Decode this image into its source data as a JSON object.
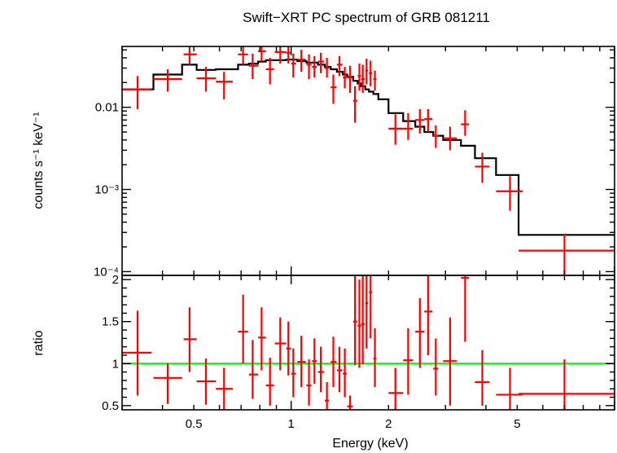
{
  "chart_data": [
    {
      "type": "scatter",
      "panel": "spectrum",
      "title": "Swift−XRT PC spectrum of GRB 081211",
      "xlabel": "",
      "ylabel": "counts s⁻¹ keV⁻¹",
      "xscale": "log",
      "yscale": "log",
      "xlim": [
        0.3,
        10
      ],
      "ylim": [
        9e-05,
        0.055
      ],
      "yticks": [
        {
          "value": 0.01,
          "label": "0.01"
        },
        {
          "value": 0.001,
          "label": "10⁻³"
        },
        {
          "value": 0.0001,
          "label": "10⁻⁴"
        }
      ],
      "colors": {
        "data": "#ff0000",
        "model": "#000000"
      },
      "series": [
        {
          "role": "data",
          "points": [
            {
              "x": 0.335,
              "xlo": 0.3,
              "xhi": 0.37,
              "y": 0.0165,
              "ylo": 0.0095,
              "yhi": 0.024
            },
            {
              "x": 0.415,
              "xlo": 0.375,
              "xhi": 0.46,
              "y": 0.022,
              "ylo": 0.0155,
              "yhi": 0.029
            },
            {
              "x": 0.485,
              "xlo": 0.465,
              "xhi": 0.51,
              "y": 0.044,
              "ylo": 0.033,
              "yhi": 0.056
            },
            {
              "x": 0.545,
              "xlo": 0.51,
              "xhi": 0.585,
              "y": 0.0225,
              "ylo": 0.0155,
              "yhi": 0.031
            },
            {
              "x": 0.62,
              "xlo": 0.585,
              "xhi": 0.66,
              "y": 0.0205,
              "ylo": 0.0125,
              "yhi": 0.027
            },
            {
              "x": 0.71,
              "xlo": 0.685,
              "xhi": 0.735,
              "y": 0.044,
              "ylo": 0.033,
              "yhi": 0.056
            },
            {
              "x": 0.76,
              "xlo": 0.74,
              "xhi": 0.79,
              "y": 0.032,
              "ylo": 0.022,
              "yhi": 0.045
            },
            {
              "x": 0.81,
              "xlo": 0.79,
              "xhi": 0.835,
              "y": 0.048,
              "ylo": 0.036,
              "yhi": 0.058
            },
            {
              "x": 0.86,
              "xlo": 0.835,
              "xhi": 0.885,
              "y": 0.029,
              "ylo": 0.019,
              "yhi": 0.04
            },
            {
              "x": 0.925,
              "xlo": 0.89,
              "xhi": 0.965,
              "y": 0.047,
              "ylo": 0.034,
              "yhi": 0.058
            },
            {
              "x": 0.98,
              "xlo": 0.965,
              "xhi": 1.0,
              "y": 0.046,
              "ylo": 0.034,
              "yhi": 0.058
            },
            {
              "x": 1.015,
              "xlo": 1.0,
              "xhi": 1.035,
              "y": 0.034,
              "ylo": 0.023,
              "yhi": 0.045
            },
            {
              "x": 1.075,
              "xlo": 1.045,
              "xhi": 1.11,
              "y": 0.038,
              "ylo": 0.027,
              "yhi": 0.05
            },
            {
              "x": 1.135,
              "xlo": 1.115,
              "xhi": 1.155,
              "y": 0.033,
              "ylo": 0.022,
              "yhi": 0.044
            },
            {
              "x": 1.18,
              "xlo": 1.16,
              "xhi": 1.2,
              "y": 0.031,
              "ylo": 0.023,
              "yhi": 0.042
            },
            {
              "x": 1.235,
              "xlo": 1.21,
              "xhi": 1.265,
              "y": 0.036,
              "ylo": 0.026,
              "yhi": 0.046
            },
            {
              "x": 1.29,
              "xlo": 1.27,
              "xhi": 1.31,
              "y": 0.03,
              "ylo": 0.023,
              "yhi": 0.04
            },
            {
              "x": 1.35,
              "xlo": 1.325,
              "xhi": 1.38,
              "y": 0.0175,
              "ylo": 0.011,
              "yhi": 0.025
            },
            {
              "x": 1.41,
              "xlo": 1.385,
              "xhi": 1.44,
              "y": 0.033,
              "ylo": 0.024,
              "yhi": 0.042
            },
            {
              "x": 1.465,
              "xlo": 1.445,
              "xhi": 1.485,
              "y": 0.023,
              "ylo": 0.017,
              "yhi": 0.031
            },
            {
              "x": 1.52,
              "xlo": 1.49,
              "xhi": 1.55,
              "y": 0.023,
              "ylo": 0.015,
              "yhi": 0.032
            },
            {
              "x": 1.575,
              "xlo": 1.555,
              "xhi": 1.6,
              "y": 0.012,
              "ylo": 0.0065,
              "yhi": 0.018
            },
            {
              "x": 1.625,
              "xlo": 1.605,
              "xhi": 1.645,
              "y": 0.024,
              "ylo": 0.016,
              "yhi": 0.034
            },
            {
              "x": 1.665,
              "xlo": 1.645,
              "xhi": 1.69,
              "y": 0.022,
              "ylo": 0.015,
              "yhi": 0.033
            },
            {
              "x": 1.71,
              "xlo": 1.695,
              "xhi": 1.73,
              "y": 0.028,
              "ylo": 0.019,
              "yhi": 0.039
            },
            {
              "x": 1.76,
              "xlo": 1.74,
              "xhi": 1.78,
              "y": 0.026,
              "ylo": 0.018,
              "yhi": 0.037
            },
            {
              "x": 1.815,
              "xlo": 1.795,
              "xhi": 1.835,
              "y": 0.022,
              "ylo": 0.016,
              "yhi": 0.028
            },
            {
              "x": 2.1,
              "xlo": 2.0,
              "xhi": 2.22,
              "y": 0.0055,
              "ylo": 0.0035,
              "yhi": 0.0082
            },
            {
              "x": 2.3,
              "xlo": 2.22,
              "xhi": 2.38,
              "y": 0.0055,
              "ylo": 0.004,
              "yhi": 0.0085
            },
            {
              "x": 2.5,
              "xlo": 2.42,
              "xhi": 2.58,
              "y": 0.007,
              "ylo": 0.0048,
              "yhi": 0.0095
            },
            {
              "x": 2.65,
              "xlo": 2.58,
              "xhi": 2.73,
              "y": 0.0072,
              "ylo": 0.005,
              "yhi": 0.0095
            },
            {
              "x": 2.8,
              "xlo": 2.75,
              "xhi": 2.85,
              "y": 0.0045,
              "ylo": 0.0032,
              "yhi": 0.006
            },
            {
              "x": 3.1,
              "xlo": 2.95,
              "xhi": 3.25,
              "y": 0.0042,
              "ylo": 0.003,
              "yhi": 0.0058
            },
            {
              "x": 3.45,
              "xlo": 3.35,
              "xhi": 3.55,
              "y": 0.0062,
              "ylo": 0.0045,
              "yhi": 0.0092
            },
            {
              "x": 3.9,
              "xlo": 3.7,
              "xhi": 4.1,
              "y": 0.0019,
              "ylo": 0.0012,
              "yhi": 0.0028
            },
            {
              "x": 4.75,
              "xlo": 4.3,
              "xhi": 5.2,
              "y": 0.00095,
              "ylo": 0.00055,
              "yhi": 0.00145
            },
            {
              "x": 7.0,
              "xlo": 5.05,
              "xhi": 10.0,
              "y": 0.00018,
              "ylo": 9e-05,
              "yhi": 0.00029
            }
          ]
        },
        {
          "role": "model",
          "steps": [
            {
              "x0": 0.3,
              "x1": 0.375,
              "y": 0.0165
            },
            {
              "x0": 0.375,
              "x1": 0.46,
              "y": 0.025
            },
            {
              "x0": 0.46,
              "x1": 0.51,
              "y": 0.033
            },
            {
              "x0": 0.51,
              "x1": 0.585,
              "y": 0.0285
            },
            {
              "x0": 0.585,
              "x1": 0.685,
              "y": 0.029
            },
            {
              "x0": 0.685,
              "x1": 0.74,
              "y": 0.033
            },
            {
              "x0": 0.74,
              "x1": 0.79,
              "y": 0.034
            },
            {
              "x0": 0.79,
              "x1": 0.835,
              "y": 0.036
            },
            {
              "x0": 0.835,
              "x1": 0.965,
              "y": 0.0375
            },
            {
              "x0": 0.965,
              "x1": 1.045,
              "y": 0.038
            },
            {
              "x0": 1.045,
              "x1": 1.115,
              "y": 0.0365
            },
            {
              "x0": 1.115,
              "x1": 1.21,
              "y": 0.035
            },
            {
              "x0": 1.21,
              "x1": 1.27,
              "y": 0.033
            },
            {
              "x0": 1.27,
              "x1": 1.325,
              "y": 0.031
            },
            {
              "x0": 1.325,
              "x1": 1.385,
              "y": 0.029
            },
            {
              "x0": 1.385,
              "x1": 1.445,
              "y": 0.027
            },
            {
              "x0": 1.445,
              "x1": 1.49,
              "y": 0.025
            },
            {
              "x0": 1.49,
              "x1": 1.555,
              "y": 0.0235
            },
            {
              "x0": 1.555,
              "x1": 1.605,
              "y": 0.021
            },
            {
              "x0": 1.605,
              "x1": 1.645,
              "y": 0.0195
            },
            {
              "x0": 1.645,
              "x1": 1.695,
              "y": 0.018
            },
            {
              "x0": 1.695,
              "x1": 1.74,
              "y": 0.0165
            },
            {
              "x0": 1.74,
              "x1": 1.795,
              "y": 0.0155
            },
            {
              "x0": 1.795,
              "x1": 1.86,
              "y": 0.0145
            },
            {
              "x0": 1.86,
              "x1": 2.0,
              "y": 0.0125
            },
            {
              "x0": 2.0,
              "x1": 2.22,
              "y": 0.0085
            },
            {
              "x0": 2.22,
              "x1": 2.42,
              "y": 0.0068
            },
            {
              "x0": 2.42,
              "x1": 2.58,
              "y": 0.0058
            },
            {
              "x0": 2.58,
              "x1": 2.75,
              "y": 0.005
            },
            {
              "x0": 2.75,
              "x1": 2.95,
              "y": 0.0045
            },
            {
              "x0": 2.95,
              "x1": 3.35,
              "y": 0.004
            },
            {
              "x0": 3.35,
              "x1": 3.7,
              "y": 0.0034
            },
            {
              "x0": 3.7,
              "x1": 4.3,
              "y": 0.0024
            },
            {
              "x0": 4.3,
              "x1": 5.05,
              "y": 0.0015
            },
            {
              "x0": 5.05,
              "x1": 10.0,
              "y": 0.00028
            }
          ]
        }
      ]
    },
    {
      "type": "scatter",
      "panel": "ratio",
      "title": "",
      "xlabel": "Energy (keV)",
      "ylabel": "ratio",
      "xscale": "log",
      "xlim": [
        0.3,
        10
      ],
      "ylim": [
        0.45,
        2.05
      ],
      "xticks": [
        {
          "value": 0.5,
          "label": "0.5"
        },
        {
          "value": 1,
          "label": "1"
        },
        {
          "value": 2,
          "label": "2"
        },
        {
          "value": 5,
          "label": "5"
        }
      ],
      "yticks": [
        {
          "value": 0.5,
          "label": "0.5"
        },
        {
          "value": 1,
          "label": "1"
        },
        {
          "value": 1.5,
          "label": "1.5"
        },
        {
          "value": 2,
          "label": "2"
        }
      ],
      "reference_line": {
        "y": 1,
        "color": "#00ff00"
      },
      "colors": {
        "data": "#ff0000"
      },
      "series": [
        {
          "role": "data",
          "points": [
            {
              "x": 0.335,
              "xlo": 0.3,
              "xhi": 0.37,
              "y": 1.13,
              "ylo": 0.62,
              "yhi": 1.63
            },
            {
              "x": 0.415,
              "xlo": 0.375,
              "xhi": 0.46,
              "y": 0.83,
              "ylo": 0.52,
              "yhi": 1.0
            },
            {
              "x": 0.485,
              "xlo": 0.465,
              "xhi": 0.51,
              "y": 1.29,
              "ylo": 0.9,
              "yhi": 1.67
            },
            {
              "x": 0.545,
              "xlo": 0.51,
              "xhi": 0.585,
              "y": 0.79,
              "ylo": 0.51,
              "yhi": 1.06
            },
            {
              "x": 0.62,
              "xlo": 0.585,
              "xhi": 0.66,
              "y": 0.7,
              "ylo": 0.45,
              "yhi": 0.95
            },
            {
              "x": 0.71,
              "xlo": 0.685,
              "xhi": 0.735,
              "y": 1.38,
              "ylo": 1.0,
              "yhi": 1.82
            },
            {
              "x": 0.76,
              "xlo": 0.74,
              "xhi": 0.79,
              "y": 0.87,
              "ylo": 0.58,
              "yhi": 1.28
            },
            {
              "x": 0.81,
              "xlo": 0.79,
              "xhi": 0.835,
              "y": 1.31,
              "ylo": 0.92,
              "yhi": 1.67
            },
            {
              "x": 0.86,
              "xlo": 0.835,
              "xhi": 0.885,
              "y": 0.74,
              "ylo": 0.5,
              "yhi": 1.07
            },
            {
              "x": 0.925,
              "xlo": 0.89,
              "xhi": 0.965,
              "y": 1.24,
              "ylo": 0.92,
              "yhi": 1.55
            },
            {
              "x": 0.98,
              "xlo": 0.965,
              "xhi": 1.0,
              "y": 1.18,
              "ylo": 0.86,
              "yhi": 1.5
            },
            {
              "x": 1.015,
              "xlo": 1.0,
              "xhi": 1.035,
              "y": 0.88,
              "ylo": 0.6,
              "yhi": 1.18
            },
            {
              "x": 1.075,
              "xlo": 1.045,
              "xhi": 1.11,
              "y": 1.02,
              "ylo": 0.72,
              "yhi": 1.33
            },
            {
              "x": 1.135,
              "xlo": 1.115,
              "xhi": 1.155,
              "y": 0.74,
              "ylo": 0.5,
              "yhi": 1.05
            },
            {
              "x": 1.18,
              "xlo": 1.16,
              "xhi": 1.2,
              "y": 1.03,
              "ylo": 0.76,
              "yhi": 1.3
            },
            {
              "x": 1.235,
              "xlo": 1.21,
              "xhi": 1.265,
              "y": 0.9,
              "ylo": 0.66,
              "yhi": 1.2
            },
            {
              "x": 1.29,
              "xlo": 1.27,
              "xhi": 1.31,
              "y": 0.56,
              "ylo": 0.45,
              "yhi": 0.78
            },
            {
              "x": 1.35,
              "xlo": 1.325,
              "xhi": 1.38,
              "y": 1.02,
              "ylo": 0.72,
              "yhi": 1.32
            },
            {
              "x": 1.41,
              "xlo": 1.385,
              "xhi": 1.44,
              "y": 0.92,
              "ylo": 0.66,
              "yhi": 1.2
            },
            {
              "x": 1.465,
              "xlo": 1.445,
              "xhi": 1.485,
              "y": 0.88,
              "ylo": 0.6,
              "yhi": 1.18
            },
            {
              "x": 1.52,
              "xlo": 1.49,
              "xhi": 1.55,
              "y": 0.49,
              "ylo": 0.45,
              "yhi": 0.62
            },
            {
              "x": 1.575,
              "xlo": 1.555,
              "xhi": 1.6,
              "y": 1.5,
              "ylo": 0.98,
              "yhi": 2.05
            },
            {
              "x": 1.625,
              "xlo": 1.605,
              "xhi": 1.645,
              "y": 1.45,
              "ylo": 0.95,
              "yhi": 2.0
            },
            {
              "x": 1.665,
              "xlo": 1.645,
              "xhi": 1.69,
              "y": 1.47,
              "ylo": 0.99,
              "yhi": 2.05
            },
            {
              "x": 1.71,
              "xlo": 1.695,
              "xhi": 1.73,
              "y": 1.72,
              "ylo": 1.18,
              "yhi": 2.05
            },
            {
              "x": 1.76,
              "xlo": 1.74,
              "xhi": 1.78,
              "y": 1.85,
              "ylo": 1.3,
              "yhi": 2.05
            },
            {
              "x": 1.815,
              "xlo": 1.795,
              "xhi": 1.835,
              "y": 1.06,
              "ylo": 0.72,
              "yhi": 1.42
            },
            {
              "x": 2.1,
              "xlo": 2.0,
              "xhi": 2.22,
              "y": 0.65,
              "ylo": 0.45,
              "yhi": 0.95
            },
            {
              "x": 2.3,
              "xlo": 2.22,
              "xhi": 2.38,
              "y": 1.04,
              "ylo": 0.63,
              "yhi": 1.42
            },
            {
              "x": 2.5,
              "xlo": 2.42,
              "xhi": 2.58,
              "y": 1.38,
              "ylo": 0.95,
              "yhi": 1.78
            },
            {
              "x": 2.65,
              "xlo": 2.58,
              "xhi": 2.73,
              "y": 1.62,
              "ylo": 1.1,
              "yhi": 2.05
            },
            {
              "x": 2.8,
              "xlo": 2.75,
              "xhi": 2.85,
              "y": 0.94,
              "ylo": 0.62,
              "yhi": 1.3
            },
            {
              "x": 3.1,
              "xlo": 2.95,
              "xhi": 3.25,
              "y": 1.03,
              "ylo": 0.5,
              "yhi": 1.55
            },
            {
              "x": 3.45,
              "xlo": 3.35,
              "xhi": 3.55,
              "y": 2.02,
              "ylo": 1.26,
              "yhi": 2.05
            },
            {
              "x": 3.9,
              "xlo": 3.7,
              "xhi": 4.1,
              "y": 0.78,
              "ylo": 0.5,
              "yhi": 1.16
            },
            {
              "x": 4.75,
              "xlo": 4.3,
              "xhi": 5.2,
              "y": 0.63,
              "ylo": 0.45,
              "yhi": 0.95
            },
            {
              "x": 7.0,
              "xlo": 5.05,
              "xhi": 10.0,
              "y": 0.64,
              "ylo": 0.45,
              "yhi": 1.05
            }
          ]
        }
      ]
    }
  ]
}
